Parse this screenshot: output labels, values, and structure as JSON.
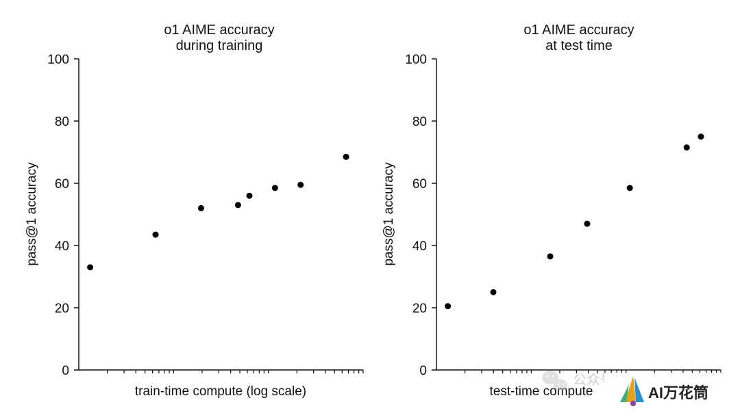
{
  "chart_data": [
    {
      "type": "scatter",
      "title": "o1 AIME accuracy",
      "subtitle": "during training",
      "xlabel": "train-time compute (log scale)",
      "ylabel": "pass@1 accuracy",
      "x_scale": "log",
      "x_tick_labels": "none",
      "ylim": [
        0,
        100
      ],
      "yticks": [
        0,
        20,
        40,
        60,
        80,
        100
      ],
      "ytick_labels": [
        "0",
        "20",
        "40",
        "60",
        "80",
        "100"
      ],
      "grid": false,
      "legend": "none",
      "marker_color": "#000000",
      "x_approx_rel": [
        0.04,
        0.27,
        0.43,
        0.56,
        0.6,
        0.69,
        0.78,
        0.94
      ],
      "values": [
        33,
        43.5,
        52,
        53,
        56,
        58.5,
        59.5,
        68.5
      ]
    },
    {
      "type": "scatter",
      "title": "o1 AIME accuracy",
      "subtitle": "at test time",
      "xlabel": "test-time compute",
      "ylabel": "pass@1 accuracy",
      "x_scale": "log",
      "x_tick_labels": "none",
      "ylim": [
        0,
        100
      ],
      "yticks": [
        0,
        20,
        40,
        60,
        80,
        100
      ],
      "ytick_labels": [
        "0",
        "20",
        "40",
        "60",
        "80",
        "100"
      ],
      "grid": false,
      "legend": "none",
      "marker_color": "#000000",
      "x_approx_rel": [
        0.04,
        0.2,
        0.4,
        0.53,
        0.68,
        0.88,
        0.93
      ],
      "values": [
        20.5,
        25,
        36.5,
        47,
        58.5,
        71.5,
        75
      ]
    }
  ],
  "watermark": {
    "icon": "wechat-icon",
    "text": "公众号",
    "brand_text": "AI万花筒",
    "brand_icon": "sail-logo-icon"
  }
}
